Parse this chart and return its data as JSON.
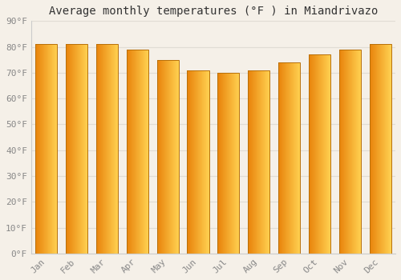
{
  "title": "Average monthly temperatures (°F ) in Miandrivazo",
  "months": [
    "Jan",
    "Feb",
    "Mar",
    "Apr",
    "May",
    "Jun",
    "Jul",
    "Aug",
    "Sep",
    "Oct",
    "Nov",
    "Dec"
  ],
  "values": [
    81,
    81,
    81,
    79,
    75,
    71,
    70,
    71,
    74,
    77,
    79,
    81
  ],
  "ylim": [
    0,
    90
  ],
  "yticks": [
    0,
    10,
    20,
    30,
    40,
    50,
    60,
    70,
    80,
    90
  ],
  "ytick_labels": [
    "0°F",
    "10°F",
    "20°F",
    "30°F",
    "40°F",
    "50°F",
    "60°F",
    "70°F",
    "80°F",
    "90°F"
  ],
  "bar_color_left": "#E8820A",
  "bar_color_right": "#FFD050",
  "bar_edge_color": "#B8700A",
  "background_color": "#F5F0E8",
  "plot_bg_color": "#F5F0E8",
  "grid_color": "#E0DCd4",
  "title_fontsize": 10,
  "tick_fontsize": 8,
  "title_color": "#333333",
  "tick_color": "#888888",
  "font_family": "monospace",
  "bar_width": 0.72,
  "n_gradient_steps": 60
}
